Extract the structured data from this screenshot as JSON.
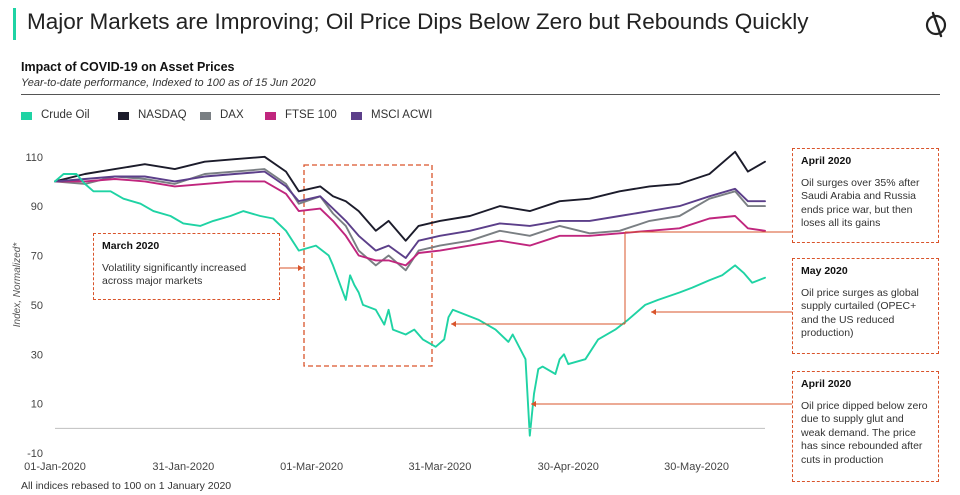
{
  "header": {
    "title": "Major Markets are Improving; Oil Price Dips Below Zero but Rebounds Quickly",
    "logo_icon": "brand-logo-icon",
    "accent_color": "#1fd3a4"
  },
  "footnote": "All indices rebased to 100 on 1 January  2020",
  "callouts": {
    "march": {
      "title": "March 2020",
      "body": "Volatility significantly increased across major markets"
    },
    "april_top": {
      "title": "April 2020",
      "body": "Oil surges over 35%  after Saudi Arabia and Russia ends price war, but then loses all its gains"
    },
    "may": {
      "title": "May 2020",
      "body": "Oil price surges as global supply curtailed (OPEC+ and the US reduced production)"
    },
    "april_bottom": {
      "title": "April 2020",
      "body": "Oil price dipped below zero due to supply glut and weak demand. The price has since rebounded after cuts in production"
    }
  },
  "chart_data": {
    "type": "line",
    "title": "Impact of COVID-19 on Asset Prices",
    "subtitle": "Year-to-date performance, Indexed to 100 as of 15 Jun 2020",
    "ylabel": "Index, Normalized*",
    "xlabel": "",
    "ylim": [
      -10,
      118
    ],
    "yticks": [
      -10,
      10,
      30,
      50,
      70,
      90,
      110
    ],
    "xlim": [
      "2020-01-01",
      "2020-06-15"
    ],
    "x_tick_labels": [
      "01-Jan-2020",
      "31-Jan-2020",
      "01-Mar-2020",
      "31-Mar-2020",
      "30-Apr-2020",
      "30-May-2020"
    ],
    "x_tick_dates": [
      "2020-01-01",
      "2020-01-31",
      "2020-03-01",
      "2020-03-31",
      "2020-04-30",
      "2020-05-30"
    ],
    "grid": false,
    "legend_position": "top-left",
    "series": [
      {
        "name": "Crude Oil",
        "color": "#1fd3a4",
        "dates": [
          "2020-01-01",
          "2020-01-03",
          "2020-01-06",
          "2020-01-08",
          "2020-01-10",
          "2020-01-14",
          "2020-01-17",
          "2020-01-21",
          "2020-01-24",
          "2020-01-28",
          "2020-01-31",
          "2020-02-04",
          "2020-02-07",
          "2020-02-11",
          "2020-02-14",
          "2020-02-18",
          "2020-02-21",
          "2020-02-24",
          "2020-02-27",
          "2020-03-02",
          "2020-03-05",
          "2020-03-06",
          "2020-03-09",
          "2020-03-10",
          "2020-03-11",
          "2020-03-12",
          "2020-03-13",
          "2020-03-16",
          "2020-03-18",
          "2020-03-19",
          "2020-03-20",
          "2020-03-23",
          "2020-03-25",
          "2020-03-27",
          "2020-03-30",
          "2020-04-01",
          "2020-04-02",
          "2020-04-03",
          "2020-04-06",
          "2020-04-09",
          "2020-04-13",
          "2020-04-16",
          "2020-04-17",
          "2020-04-20",
          "2020-04-21",
          "2020-04-22",
          "2020-04-23",
          "2020-04-24",
          "2020-04-27",
          "2020-04-28",
          "2020-04-29",
          "2020-04-30",
          "2020-05-04",
          "2020-05-07",
          "2020-05-11",
          "2020-05-14",
          "2020-05-18",
          "2020-05-21",
          "2020-05-26",
          "2020-05-29",
          "2020-06-02",
          "2020-06-05",
          "2020-06-08",
          "2020-06-10",
          "2020-06-12",
          "2020-06-15"
        ],
        "values": [
          100,
          103,
          103,
          99,
          96,
          96,
          93,
          91,
          88,
          86,
          83,
          82,
          84,
          86,
          88,
          86,
          85,
          80,
          72,
          74,
          70,
          66,
          52,
          62,
          58,
          55,
          50,
          48,
          42,
          48,
          40,
          38,
          40,
          36,
          33,
          36,
          45,
          48,
          46,
          44,
          40,
          35,
          38,
          28,
          -3,
          14,
          24,
          25,
          22,
          28,
          30,
          26,
          28,
          36,
          40,
          44,
          50,
          52,
          55,
          57,
          60,
          62,
          66,
          63,
          59,
          61
        ]
      },
      {
        "name": "NASDAQ",
        "color": "#1c1c2b",
        "dates": [
          "2020-01-01",
          "2020-01-08",
          "2020-01-15",
          "2020-01-22",
          "2020-01-29",
          "2020-02-05",
          "2020-02-12",
          "2020-02-19",
          "2020-02-24",
          "2020-02-27",
          "2020-03-03",
          "2020-03-06",
          "2020-03-09",
          "2020-03-12",
          "2020-03-16",
          "2020-03-19",
          "2020-03-23",
          "2020-03-26",
          "2020-03-31",
          "2020-04-07",
          "2020-04-14",
          "2020-04-21",
          "2020-04-28",
          "2020-05-05",
          "2020-05-12",
          "2020-05-19",
          "2020-05-26",
          "2020-06-02",
          "2020-06-08",
          "2020-06-11",
          "2020-06-15"
        ],
        "values": [
          100,
          103,
          105,
          107,
          105,
          108,
          109,
          110,
          104,
          96,
          98,
          94,
          92,
          88,
          80,
          84,
          76,
          82,
          84,
          86,
          90,
          88,
          92,
          93,
          96,
          98,
          99,
          103,
          112,
          104,
          108
        ]
      },
      {
        "name": "DAX",
        "color": "#7a7f83",
        "dates": [
          "2020-01-01",
          "2020-01-08",
          "2020-01-15",
          "2020-01-22",
          "2020-01-29",
          "2020-02-05",
          "2020-02-12",
          "2020-02-19",
          "2020-02-24",
          "2020-02-27",
          "2020-03-03",
          "2020-03-06",
          "2020-03-09",
          "2020-03-12",
          "2020-03-16",
          "2020-03-19",
          "2020-03-23",
          "2020-03-26",
          "2020-03-31",
          "2020-04-07",
          "2020-04-14",
          "2020-04-21",
          "2020-04-28",
          "2020-05-05",
          "2020-05-12",
          "2020-05-19",
          "2020-05-26",
          "2020-06-02",
          "2020-06-08",
          "2020-06-11",
          "2020-06-15"
        ],
        "values": [
          100,
          99,
          102,
          101,
          99,
          103,
          104,
          105,
          99,
          91,
          94,
          87,
          82,
          72,
          66,
          70,
          64,
          72,
          74,
          76,
          80,
          78,
          82,
          79,
          80,
          84,
          86,
          93,
          96,
          90,
          90
        ]
      },
      {
        "name": "FTSE 100",
        "color": "#c0267e",
        "dates": [
          "2020-01-01",
          "2020-01-08",
          "2020-01-15",
          "2020-01-22",
          "2020-01-29",
          "2020-02-05",
          "2020-02-12",
          "2020-02-19",
          "2020-02-24",
          "2020-02-27",
          "2020-03-03",
          "2020-03-06",
          "2020-03-09",
          "2020-03-12",
          "2020-03-16",
          "2020-03-19",
          "2020-03-23",
          "2020-03-26",
          "2020-03-31",
          "2020-04-07",
          "2020-04-14",
          "2020-04-21",
          "2020-04-28",
          "2020-05-05",
          "2020-05-12",
          "2020-05-19",
          "2020-05-26",
          "2020-06-02",
          "2020-06-08",
          "2020-06-11",
          "2020-06-15"
        ],
        "values": [
          100,
          100,
          101,
          100,
          98,
          99,
          100,
          100,
          95,
          88,
          89,
          84,
          78,
          70,
          68,
          68,
          66,
          71,
          72,
          74,
          76,
          74,
          78,
          78,
          79,
          80,
          81,
          85,
          86,
          81,
          80
        ]
      },
      {
        "name": "MSCI ACWI",
        "color": "#5c3f8a",
        "dates": [
          "2020-01-01",
          "2020-01-08",
          "2020-01-15",
          "2020-01-22",
          "2020-01-29",
          "2020-02-05",
          "2020-02-12",
          "2020-02-19",
          "2020-02-24",
          "2020-02-27",
          "2020-03-03",
          "2020-03-06",
          "2020-03-09",
          "2020-03-12",
          "2020-03-16",
          "2020-03-19",
          "2020-03-23",
          "2020-03-26",
          "2020-03-31",
          "2020-04-07",
          "2020-04-14",
          "2020-04-21",
          "2020-04-28",
          "2020-05-05",
          "2020-05-12",
          "2020-05-19",
          "2020-05-26",
          "2020-06-02",
          "2020-06-08",
          "2020-06-11",
          "2020-06-15"
        ],
        "values": [
          100,
          101,
          102,
          102,
          100,
          102,
          103,
          104,
          98,
          92,
          94,
          89,
          84,
          78,
          72,
          74,
          69,
          76,
          78,
          80,
          83,
          82,
          84,
          84,
          86,
          88,
          90,
          94,
          97,
          92,
          92
        ]
      }
    ]
  }
}
